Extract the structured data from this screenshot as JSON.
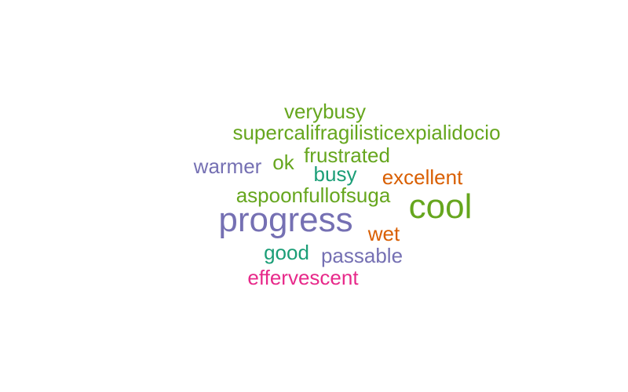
{
  "word_cloud": {
    "words": [
      {
        "key": "verybusy",
        "text": "verybusy",
        "color": "#66a61e"
      },
      {
        "key": "supercali",
        "text": "supercalifragilisticexpialidocio",
        "color": "#66a61e"
      },
      {
        "key": "frustrated",
        "text": "frustrated",
        "color": "#66a61e"
      },
      {
        "key": "warmer",
        "text": "warmer",
        "color": "#7570b3"
      },
      {
        "key": "ok",
        "text": "ok",
        "color": "#66a61e"
      },
      {
        "key": "busy",
        "text": "busy",
        "color": "#1b9e77"
      },
      {
        "key": "excellent",
        "text": "excellent",
        "color": "#d95f02"
      },
      {
        "key": "aspoon",
        "text": "aspoonfullofsuga",
        "color": "#66a61e"
      },
      {
        "key": "cool",
        "text": "cool",
        "color": "#66a61e"
      },
      {
        "key": "progress",
        "text": "progress",
        "color": "#7570b3"
      },
      {
        "key": "wet",
        "text": "wet",
        "color": "#d95f02"
      },
      {
        "key": "good",
        "text": "good",
        "color": "#1b9e77"
      },
      {
        "key": "passable",
        "text": "passable",
        "color": "#7570b3"
      },
      {
        "key": "effervescent",
        "text": "effervescent",
        "color": "#e7298a"
      }
    ]
  }
}
